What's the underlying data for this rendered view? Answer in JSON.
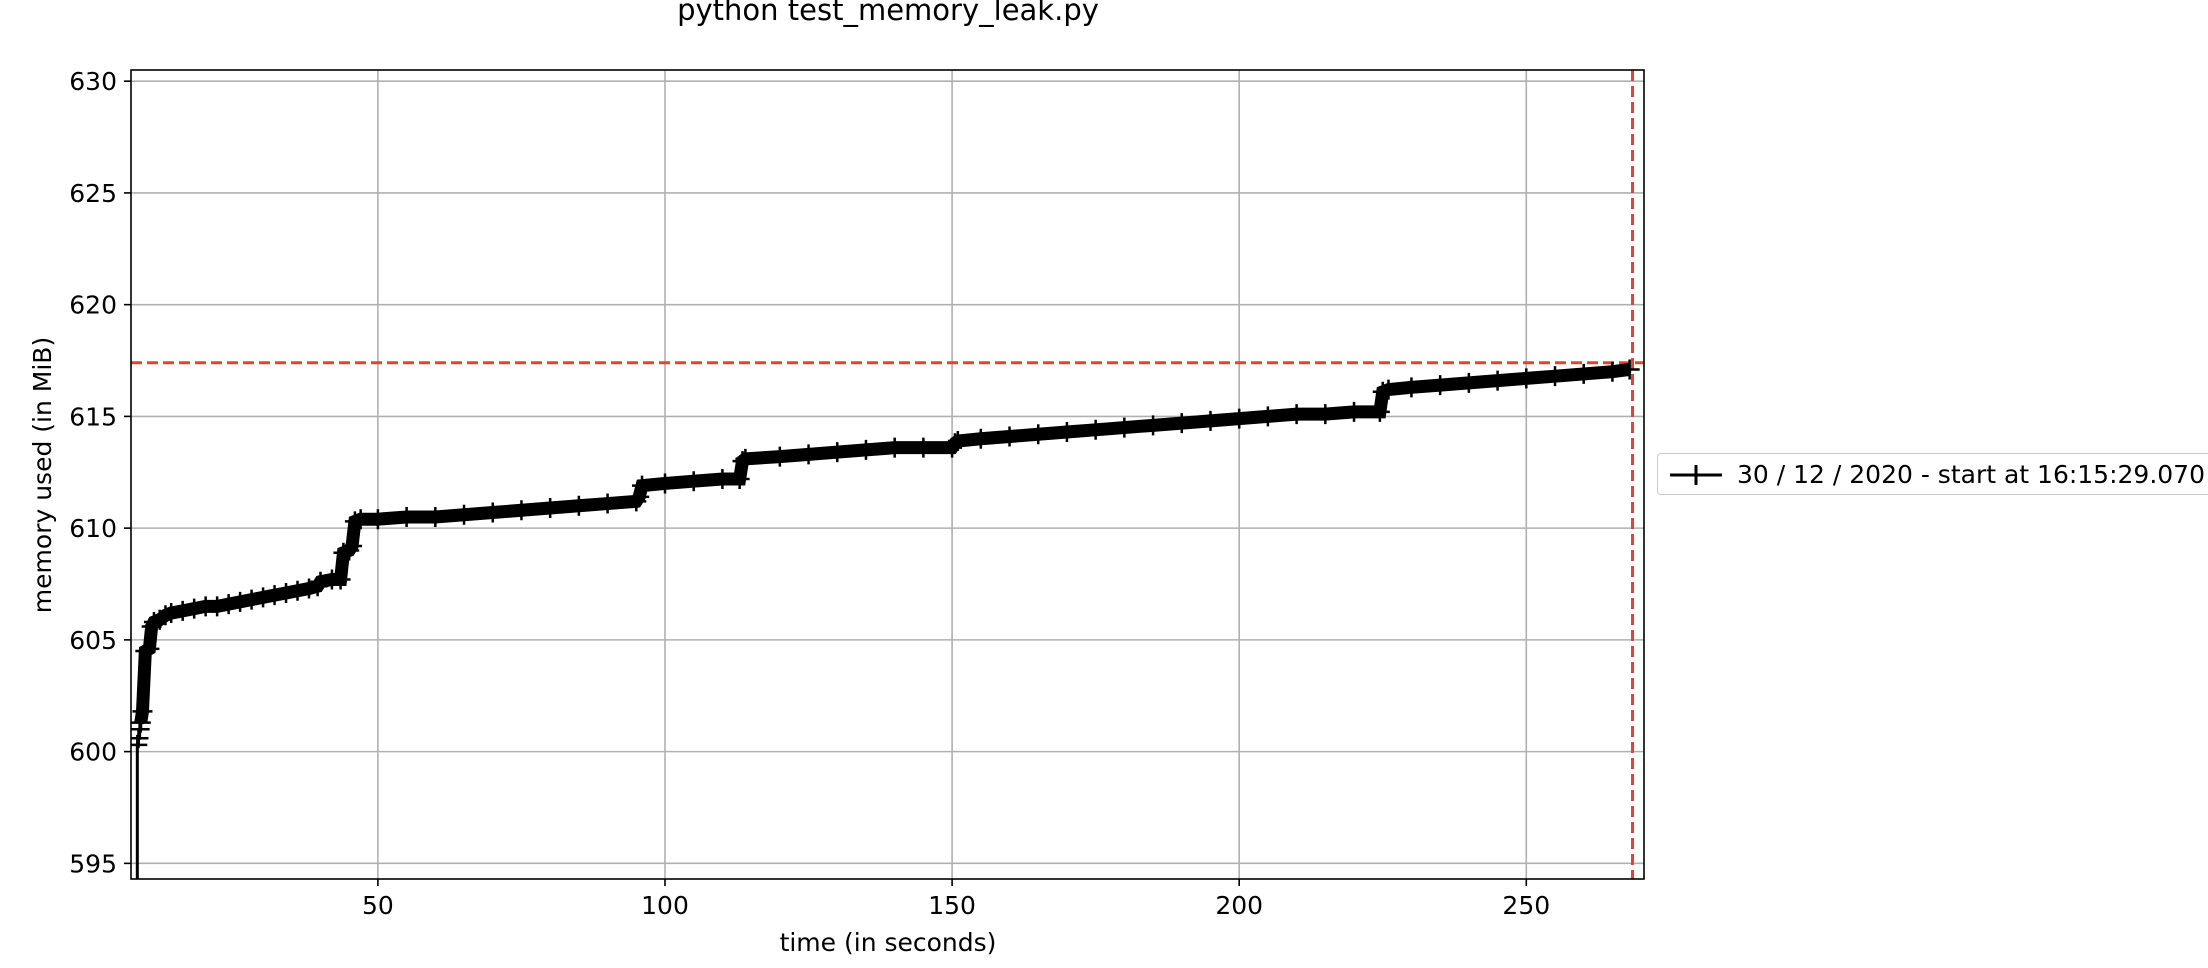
{
  "chart_data": {
    "type": "line",
    "title": "python test_memory_leak.py",
    "xlabel": "time (in seconds)",
    "ylabel": "memory used (in MiB)",
    "xlim": [
      7,
      270.5
    ],
    "ylim": [
      594.3,
      630.5
    ],
    "xticks": [
      50,
      100,
      150,
      200,
      250
    ],
    "xtick_labels": [
      "50",
      "100",
      "150",
      "200",
      "250"
    ],
    "yticks": [
      595,
      600,
      605,
      610,
      615,
      620,
      625,
      630
    ],
    "ytick_labels": [
      "595",
      "600",
      "605",
      "610",
      "615",
      "620",
      "625",
      "630"
    ],
    "grid": true,
    "legend_placement": "right, outside plot",
    "series": [
      {
        "name": "30 / 12 / 2020 - start at 16:15:29.070",
        "color": "#000000",
        "marker": "+",
        "x": [
          8.0,
          8.1,
          8.3,
          8.5,
          8.7,
          9.0,
          9.5,
          10.2,
          10.6,
          11.0,
          12,
          13,
          14,
          16,
          18,
          20,
          22,
          24,
          26,
          28,
          30,
          32,
          34,
          36,
          38,
          39.5,
          40,
          42,
          43.5,
          44,
          45,
          45.5,
          46,
          47,
          50,
          55,
          60,
          65,
          70,
          75,
          80,
          85,
          90,
          95,
          95.5,
          96,
          100,
          105,
          110,
          113,
          113.5,
          114,
          120,
          125,
          130,
          135,
          140,
          145,
          150,
          150.5,
          151,
          155,
          160,
          165,
          170,
          175,
          180,
          185,
          190,
          195,
          200,
          205,
          210,
          215,
          220,
          224.5,
          225,
          226,
          230,
          235,
          240,
          245,
          250,
          255,
          260,
          265,
          268
        ],
        "y": [
          590.0,
          600.3,
          600.6,
          601.0,
          601.3,
          601.8,
          604.5,
          604.6,
          605.6,
          605.8,
          605.9,
          606.1,
          606.2,
          606.3,
          606.4,
          606.5,
          606.5,
          606.6,
          606.7,
          606.8,
          606.9,
          607.0,
          607.1,
          607.2,
          607.3,
          607.4,
          607.6,
          607.7,
          607.7,
          608.9,
          609.0,
          609.2,
          610.3,
          610.4,
          610.4,
          610.5,
          610.5,
          610.6,
          610.7,
          610.8,
          610.9,
          611.0,
          611.1,
          611.2,
          611.4,
          611.9,
          612.0,
          612.1,
          612.2,
          612.2,
          613.0,
          613.1,
          613.2,
          613.3,
          613.4,
          613.5,
          613.6,
          613.6,
          613.6,
          613.8,
          613.9,
          614.0,
          614.1,
          614.2,
          614.3,
          614.4,
          614.5,
          614.6,
          614.7,
          614.8,
          614.9,
          615.0,
          615.1,
          615.1,
          615.2,
          615.2,
          616.1,
          616.2,
          616.3,
          616.4,
          616.5,
          616.6,
          616.7,
          616.8,
          616.9,
          617.0,
          617.1
        ]
      }
    ],
    "reference_lines": {
      "color": "#e8412f",
      "style": "dashed",
      "horizontal_y": 617.4,
      "vertical_x": 268.5
    }
  }
}
